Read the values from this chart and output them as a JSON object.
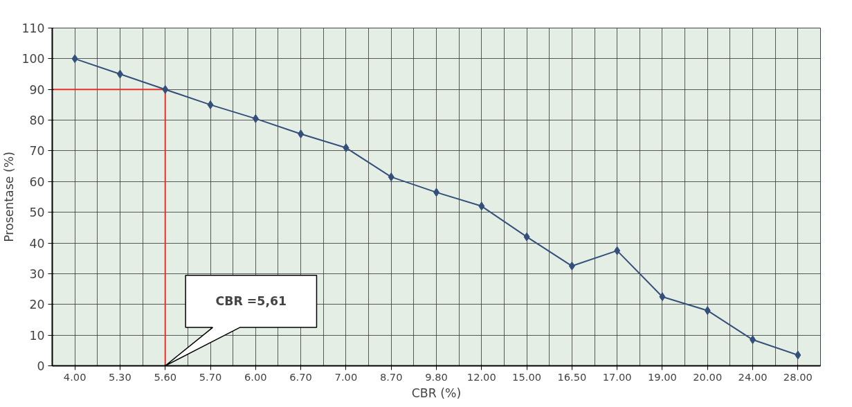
{
  "chart_data": {
    "type": "line",
    "xlabel": "CBR (%)",
    "ylabel": "Prosentase (%)",
    "categories": [
      "4.00",
      "5.30",
      "5.60",
      "5.70",
      "6.00",
      "6.70",
      "7.00",
      "8.70",
      "9.80",
      "12.00",
      "15.00",
      "16.50",
      "17.00",
      "19.00",
      "20.00",
      "24.00",
      "28.00"
    ],
    "series": [
      {
        "color": "#34507a",
        "values": [
          100,
          95,
          90,
          85,
          80.5,
          75.5,
          71,
          61.5,
          56.5,
          52,
          42,
          32.5,
          37.5,
          22.5,
          18,
          8.5,
          3.5
        ]
      }
    ],
    "ylim": [
      0,
      110
    ],
    "yticks": [
      0,
      10,
      20,
      30,
      40,
      50,
      60,
      70,
      80,
      90,
      100,
      110
    ],
    "grid": true,
    "marker": "diamond",
    "line_style": "solid",
    "ref_lines": [
      {
        "axis": "y",
        "value": 90,
        "color": "#e8302a"
      },
      {
        "axis": "x",
        "value": "5.60",
        "color": "#e8302a"
      }
    ],
    "annotations": [
      "CBR =5,61"
    ]
  }
}
